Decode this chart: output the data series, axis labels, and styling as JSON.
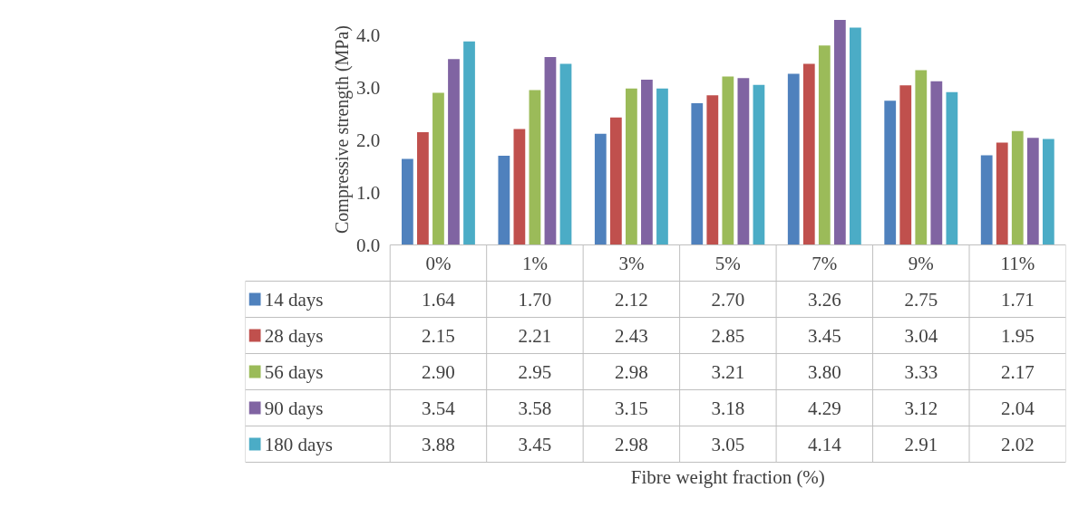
{
  "chart_data": {
    "type": "bar",
    "annotations": [
      "Fibre weight fraction (%)"
    ],
    "ylabel": "Compressive strength (MPa)",
    "legend": "bottom left",
    "categories": [
      "0%",
      "1%",
      "3%",
      "5%",
      "7%",
      "9%",
      "11%"
    ],
    "ylim": [
      0,
      4.4
    ],
    "yticks": [
      {
        "value": 0,
        "label": "0.0"
      },
      {
        "value": 1,
        "label": "1.0"
      },
      {
        "value": 2,
        "label": "2.0"
      },
      {
        "value": 3,
        "label": "3.0"
      },
      {
        "value": 4,
        "label": "4.0"
      }
    ],
    "grid": false,
    "series": [
      {
        "name": "14 days",
        "color": "#4f81bd",
        "values": [
          1.64,
          1.7,
          2.12,
          2.7,
          3.26,
          2.75,
          1.71
        ],
        "value_labels": [
          "1.64",
          "1.70",
          "2.12",
          "2.70",
          "3.26",
          "2.75",
          "1.71"
        ]
      },
      {
        "name": "28 days",
        "color": "#c0504d",
        "values": [
          2.15,
          2.21,
          2.43,
          2.85,
          3.45,
          3.04,
          1.95
        ],
        "value_labels": [
          "2.15",
          "2.21",
          "2.43",
          "2.85",
          "3.45",
          "3.04",
          "1.95"
        ]
      },
      {
        "name": "56 days",
        "color": "#9bbb59",
        "values": [
          2.9,
          2.95,
          2.98,
          3.21,
          3.8,
          3.33,
          2.17
        ],
        "value_labels": [
          "2.90",
          "2.95",
          "2.98",
          "3.21",
          "3.80",
          "3.33",
          "2.17"
        ]
      },
      {
        "name": "90 days",
        "color": "#8064a2",
        "values": [
          3.54,
          3.58,
          3.15,
          3.18,
          4.29,
          3.12,
          2.04
        ],
        "value_labels": [
          "3.54",
          "3.58",
          "3.15",
          "3.18",
          "4.29",
          "3.12",
          "2.04"
        ]
      },
      {
        "name": "180 days",
        "color": "#4bacc6",
        "values": [
          3.88,
          3.45,
          2.98,
          3.05,
          4.14,
          2.91,
          2.02
        ],
        "value_labels": [
          "3.88",
          "3.45",
          "2.98",
          "3.05",
          "4.14",
          "2.91",
          "2.02"
        ]
      }
    ]
  }
}
